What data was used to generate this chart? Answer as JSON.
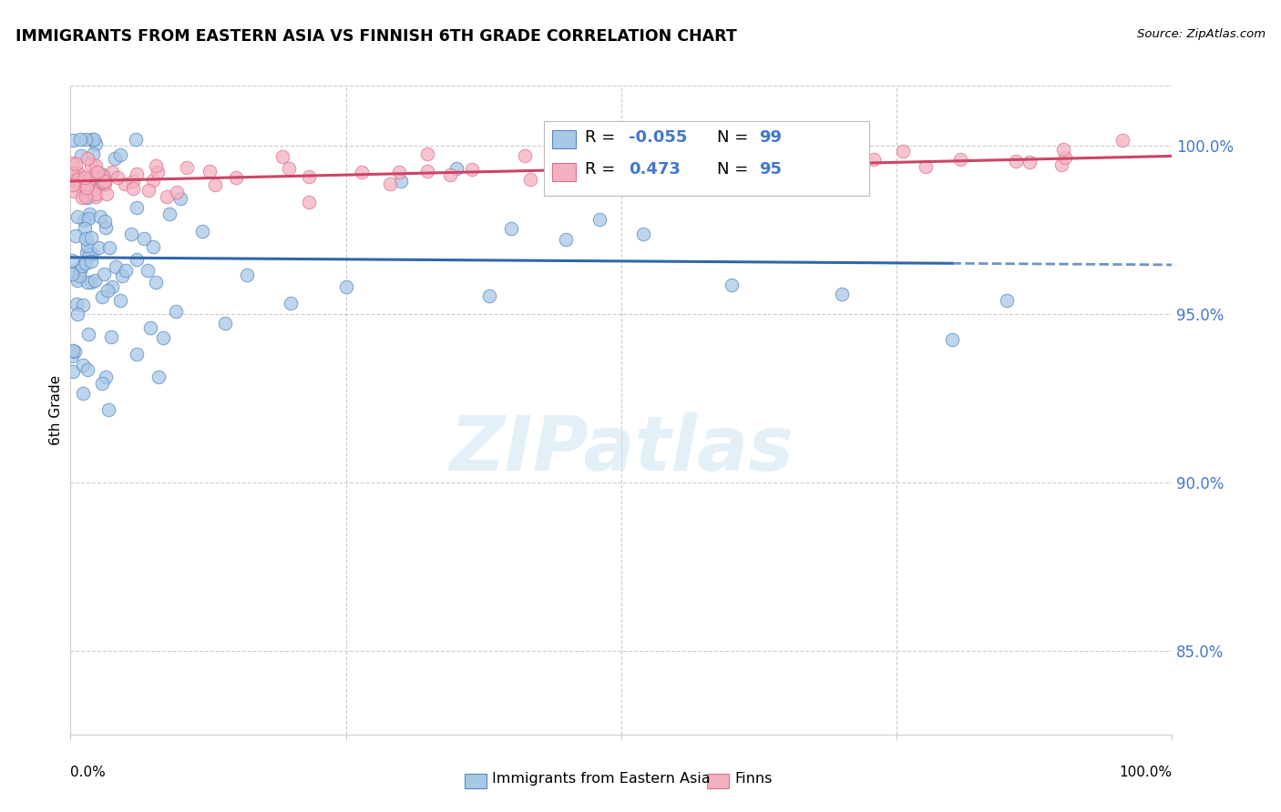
{
  "title": "IMMIGRANTS FROM EASTERN ASIA VS FINNISH 6TH GRADE CORRELATION CHART",
  "source": "Source: ZipAtlas.com",
  "ylabel": "6th Grade",
  "xlim": [
    0.0,
    1.0
  ],
  "ylim": [
    0.825,
    1.018
  ],
  "ytick_labels": [
    "85.0%",
    "90.0%",
    "95.0%",
    "100.0%"
  ],
  "ytick_values": [
    0.85,
    0.9,
    0.95,
    1.0
  ],
  "blue_R": -0.055,
  "blue_N": 99,
  "pink_R": 0.473,
  "pink_N": 95,
  "legend_label_blue": "R = -0.055  N = 99",
  "legend_label_pink": "R =  0.473  N = 95",
  "legend_blue": "Immigrants from Eastern Asia",
  "legend_pink": "Finns",
  "watermark": "ZIPatlas",
  "blue_fill": "#a8c8e8",
  "blue_edge": "#5588bb",
  "pink_fill": "#f4b0c0",
  "pink_edge": "#dd7090",
  "blue_line": "#3366aa",
  "pink_line": "#cc4466",
  "grid_color": "#cccccc",
  "right_tick_color": "#4477cc"
}
